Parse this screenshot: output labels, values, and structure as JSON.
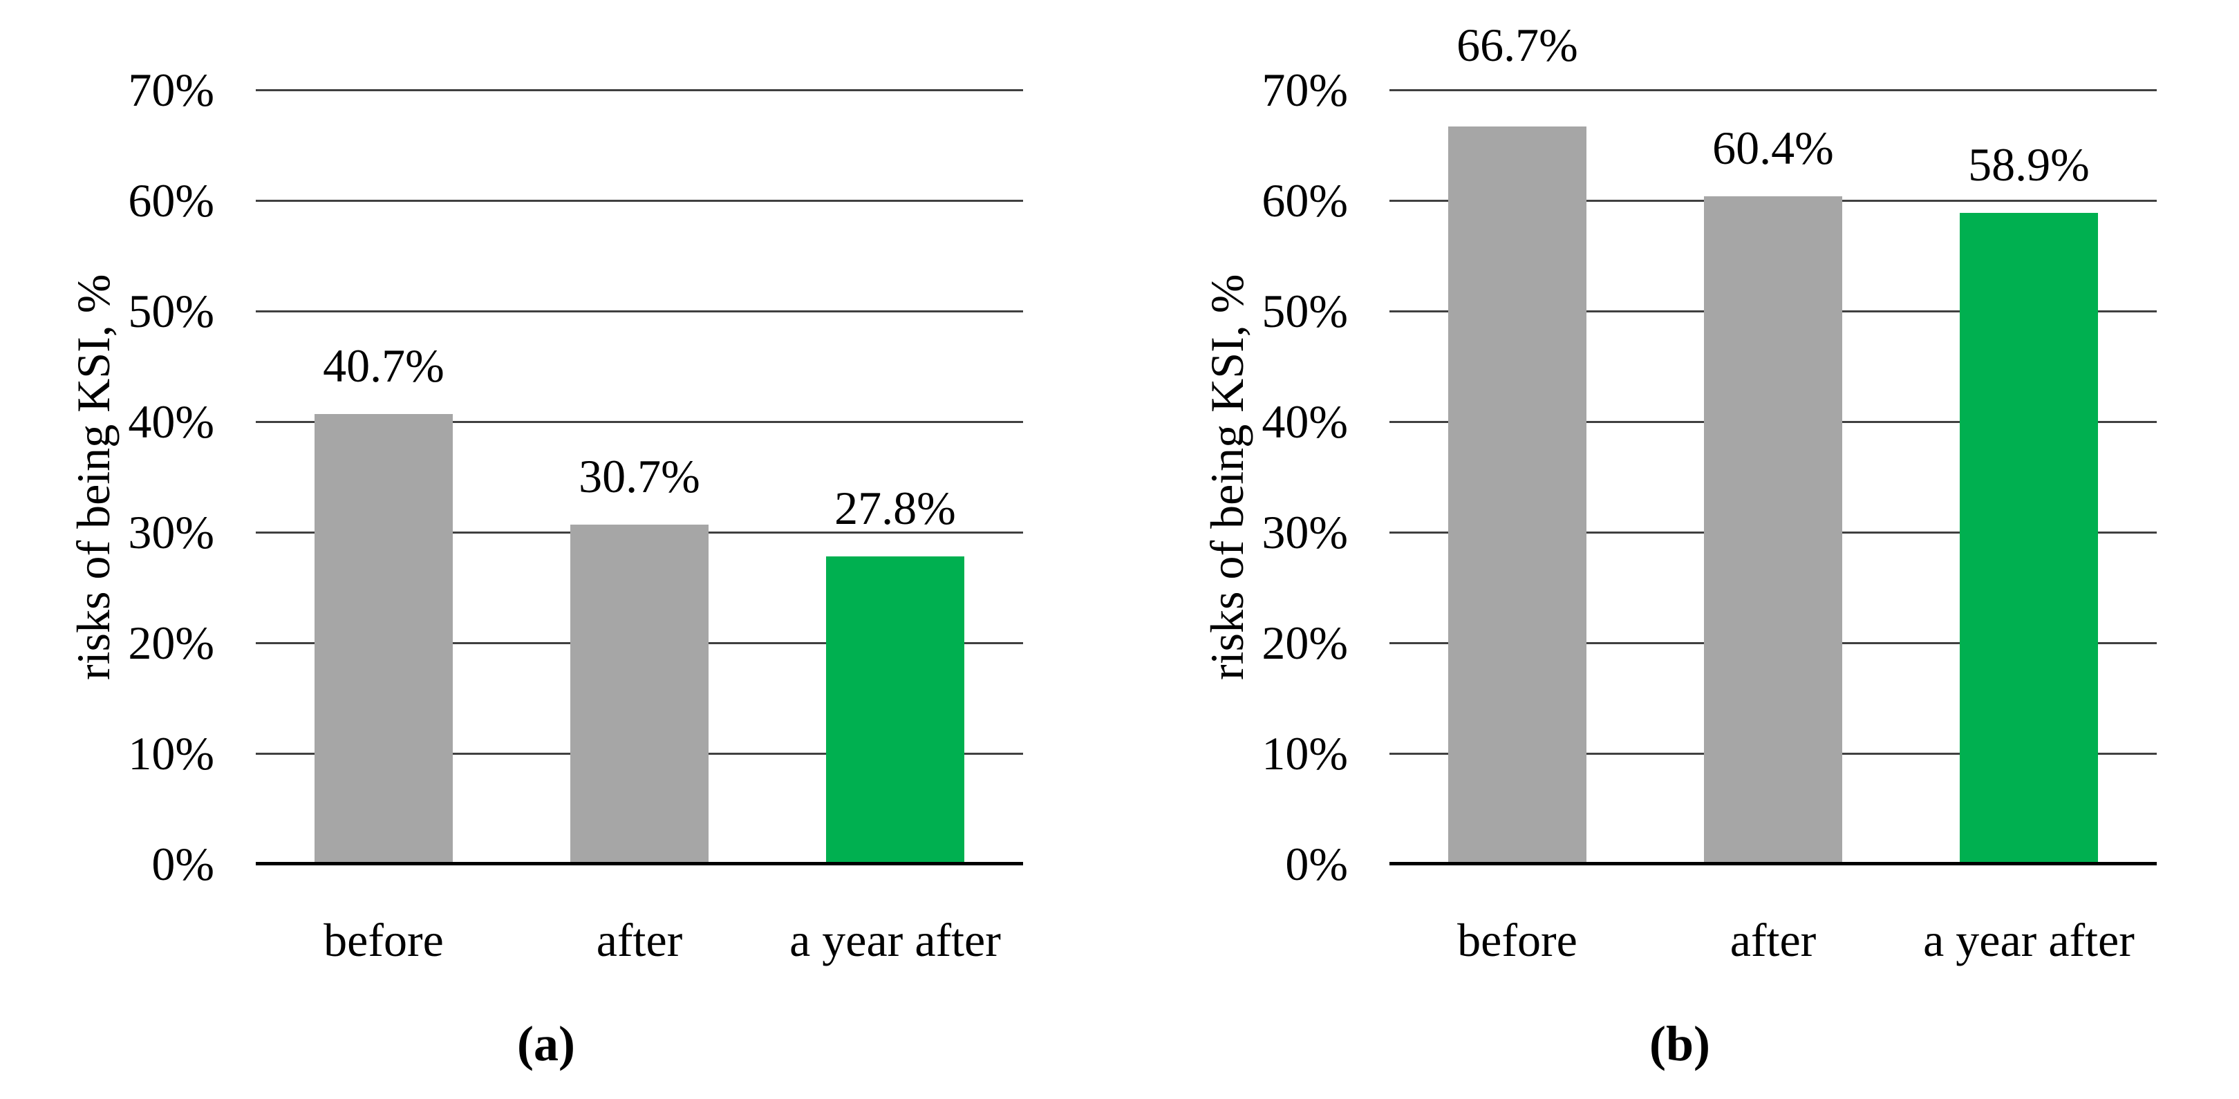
{
  "colors": {
    "bar_gray": "#A6A6A6",
    "bar_green": "#00B050",
    "gridline": "#404040",
    "axis_line": "#000000",
    "text": "#000000",
    "background": "#FFFFFF"
  },
  "chart_data": [
    {
      "type": "bar",
      "panel_label": "(a)",
      "title": "",
      "xlabel": "",
      "ylabel": "risks of being KSI, %",
      "categories": [
        "before",
        "after",
        "a year after"
      ],
      "values": [
        40.7,
        30.7,
        27.8
      ],
      "value_labels": [
        "40.7%",
        "30.7%",
        "27.8%"
      ],
      "bar_colors": [
        "#A6A6A6",
        "#A6A6A6",
        "#00B050"
      ],
      "ylim": [
        0,
        70
      ],
      "ytick_step": 10,
      "ytick_labels": [
        "0%",
        "10%",
        "20%",
        "30%",
        "40%",
        "50%",
        "60%",
        "70%"
      ],
      "grid": "horizontal",
      "legend": "none"
    },
    {
      "type": "bar",
      "panel_label": "(b)",
      "title": "",
      "xlabel": "",
      "ylabel": "risks of being KSI, %",
      "categories": [
        "before",
        "after",
        "a year after"
      ],
      "values": [
        66.7,
        60.4,
        58.9
      ],
      "value_labels": [
        "66.7%",
        "60.4%",
        "58.9%"
      ],
      "bar_colors": [
        "#A6A6A6",
        "#A6A6A6",
        "#00B050"
      ],
      "ylim": [
        0,
        70
      ],
      "ytick_step": 10,
      "ytick_labels": [
        "0%",
        "10%",
        "20%",
        "30%",
        "40%",
        "50%",
        "60%",
        "70%"
      ],
      "grid": "horizontal",
      "legend": "none"
    }
  ]
}
